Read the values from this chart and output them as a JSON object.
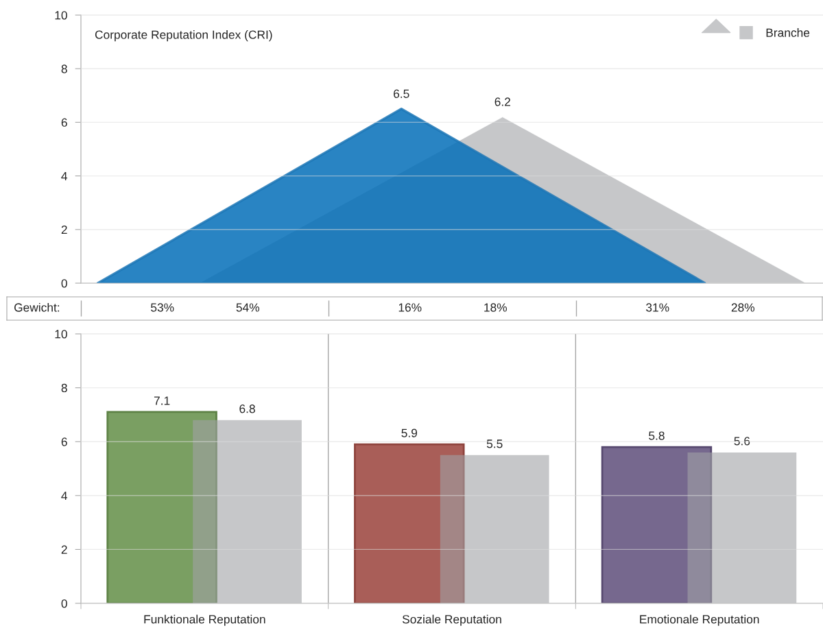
{
  "chart_data": [
    {
      "type": "area",
      "title": "Corporate Reputation Index (CRI)",
      "categories": [
        null,
        null,
        null,
        null,
        null,
        null,
        null,
        null,
        null,
        null,
        null,
        null,
        null,
        null,
        null,
        null,
        null,
        null,
        null,
        null,
        null,
        null
      ],
      "series": [
        {
          "name": "Branche",
          "color": "#c6c7c9",
          "values": [
            null,
            null,
            null,
            0,
            null,
            null,
            null,
            null,
            null,
            null,
            null,
            null,
            6.2,
            null,
            null,
            null,
            null,
            null,
            null,
            null,
            null,
            0
          ],
          "value_labels": [
            null,
            null,
            null,
            null,
            null,
            null,
            null,
            null,
            null,
            null,
            null,
            null,
            "6.2",
            null,
            null,
            null,
            null,
            null,
            null,
            null,
            null,
            null
          ]
        },
        {
          "color": "#2a84c3",
          "values": [
            0,
            null,
            null,
            null,
            null,
            null,
            null,
            null,
            null,
            6.5,
            null,
            null,
            null,
            null,
            null,
            null,
            null,
            null,
            0,
            null,
            null,
            null
          ],
          "value_labels": [
            null,
            null,
            null,
            null,
            null,
            null,
            null,
            null,
            null,
            "6.5",
            null,
            null,
            null,
            null,
            null,
            null,
            null,
            null,
            null,
            null,
            null,
            null
          ]
        }
      ],
      "ylim": [
        0,
        10
      ],
      "yticks": [
        0,
        2,
        4,
        6,
        8,
        10
      ],
      "grid": "y",
      "legend": "top right"
    },
    {
      "type": "other",
      "ylabel": "Gewicht:",
      "categories": [
        null,
        null,
        null
      ],
      "annotations": [
        "53%",
        "54%",
        "16%",
        "18%",
        "31%",
        "28%"
      ]
    },
    {
      "type": "bar",
      "categories": [
        "Funktionale Reputation",
        "Soziale Reputation",
        "Emotionale Reputation"
      ],
      "series": [
        {
          "colors": [
            "#7a9f62",
            "#a95e58",
            "#76688e"
          ],
          "values": [
            7.1,
            5.9,
            5.8
          ]
        },
        {
          "color": "#c6c7c9",
          "values": [
            6.8,
            5.5,
            5.6
          ]
        }
      ],
      "ylim": [
        0,
        10
      ],
      "yticks": [
        0,
        2,
        4,
        6,
        8,
        10
      ],
      "grid": true,
      "data_labels": true
    }
  ]
}
